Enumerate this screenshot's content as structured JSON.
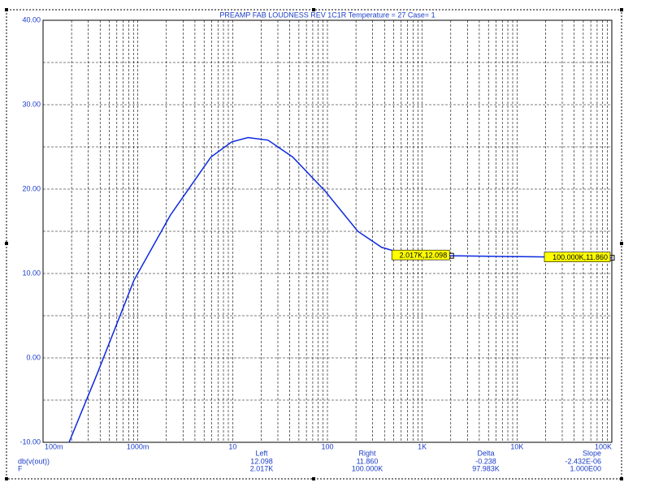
{
  "chart_data": {
    "type": "line",
    "title": "PREAMP FAB LOUDNESS REV 1C1R Temperature = 27 Case= 1",
    "x": [
      0.188,
      0.375,
      0.91,
      2.2,
      5.9,
      9.8,
      14.5,
      23.6,
      43,
      94,
      209,
      373,
      615,
      2017,
      100000
    ],
    "series": [
      {
        "name": "db(v(out))",
        "color": "#0a28e0",
        "values": [
          -10,
          -1.8,
          9.2,
          16.9,
          23.8,
          25.6,
          26.1,
          25.8,
          23.8,
          19.8,
          15.0,
          13.1,
          12.4,
          12.098,
          11.86
        ]
      }
    ],
    "xlog": true,
    "xlim": [
      0.1,
      100000
    ],
    "xticks": [
      {
        "value": 0.1,
        "label": "100m"
      },
      {
        "value": 1,
        "label": "1000m"
      },
      10,
      100,
      {
        "value": 1000,
        "label": "1K"
      },
      {
        "value": 10000,
        "label": "10K"
      },
      {
        "value": 100000,
        "label": "100K"
      }
    ],
    "ylim": [
      -10,
      40
    ],
    "yticks": [
      {
        "value": -10,
        "label": "-10.00"
      },
      {
        "value": 0,
        "label": "0.00"
      },
      {
        "value": 10,
        "label": "10.00"
      },
      {
        "value": 20,
        "label": "20.00"
      },
      {
        "value": 30,
        "label": "30.00"
      },
      {
        "value": 40,
        "label": "40.00"
      }
    ],
    "grid": true,
    "annotations": [
      {
        "text": "2.017K,12.098",
        "x": 2017,
        "y": 12.098
      },
      {
        "text": "100.000K,11.860",
        "x": 100000,
        "y": 11.86
      }
    ],
    "readout": {
      "columns": [
        "Left",
        "Right",
        "Delta",
        "Slope"
      ],
      "rows": [
        {
          "label": "db(v(out))",
          "cells": [
            "12.098",
            "11.860",
            "-0.238",
            "-2.432E-06"
          ]
        },
        {
          "label": "F",
          "cells": [
            "2.017K",
            "100.000K",
            "97.983K",
            "1.000E00"
          ]
        }
      ]
    }
  }
}
